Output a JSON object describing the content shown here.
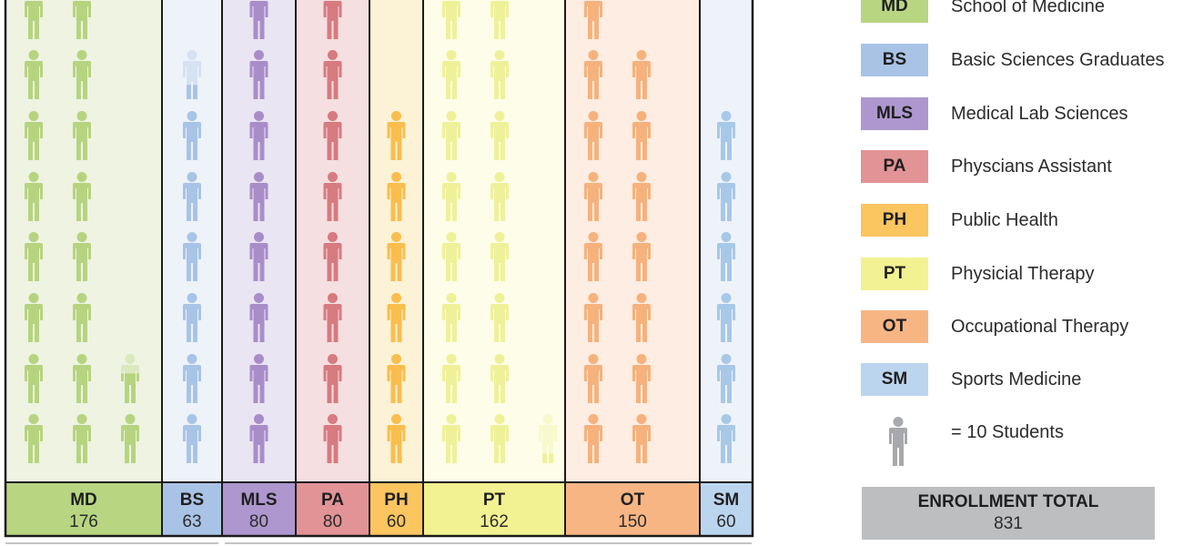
{
  "chart_data": {
    "type": "pictograph",
    "unit": "= 10 Students",
    "programs": [
      {
        "code": "MD",
        "name": "School of Medicine",
        "value": 176,
        "color": "#b6d47f",
        "bg": "#eef3e2",
        "label_bg": "#b8d582"
      },
      {
        "code": "BS",
        "name": "Basic Sciences Graduates",
        "value": 63,
        "color": "#a8c4e6",
        "bg": "#eef3f9",
        "label_bg": "#a9c3e6"
      },
      {
        "code": "MLS",
        "name": "Medical Lab Sciences",
        "value": 80,
        "color": "#a98dc9",
        "bg": "#e9e5f2",
        "label_bg": "#ae97cf"
      },
      {
        "code": "PA",
        "name": "Physcians Assistant",
        "value": 80,
        "color": "#d67b7f",
        "bg": "#f5dfe0",
        "label_bg": "#e29396"
      },
      {
        "code": "PH",
        "name": "Public Health",
        "value": 60,
        "color": "#f9be4e",
        "bg": "#fcf2d5",
        "label_bg": "#fbc55f"
      },
      {
        "code": "PT",
        "name": "Physicial Therapy",
        "value": 162,
        "color": "#eff199",
        "bg": "#fdfde9",
        "label_bg": "#f3f292"
      },
      {
        "code": "OT",
        "name": "Occupational Therapy",
        "value": 150,
        "color": "#f6b27d",
        "bg": "#fdede2",
        "label_bg": "#f7b584"
      },
      {
        "code": "SM",
        "name": "Sports Medicine",
        "value": 60,
        "color": "#a8c8e8",
        "bg": "#eef3fa",
        "label_bg": "#bcd5ef"
      }
    ],
    "total_label": "ENROLLMENT TOTAL",
    "total_value": "831"
  },
  "colors": {
    "border": "#1a1a1a",
    "total_bg": "#bcbec0",
    "key_icon": "#a7a9ac"
  }
}
